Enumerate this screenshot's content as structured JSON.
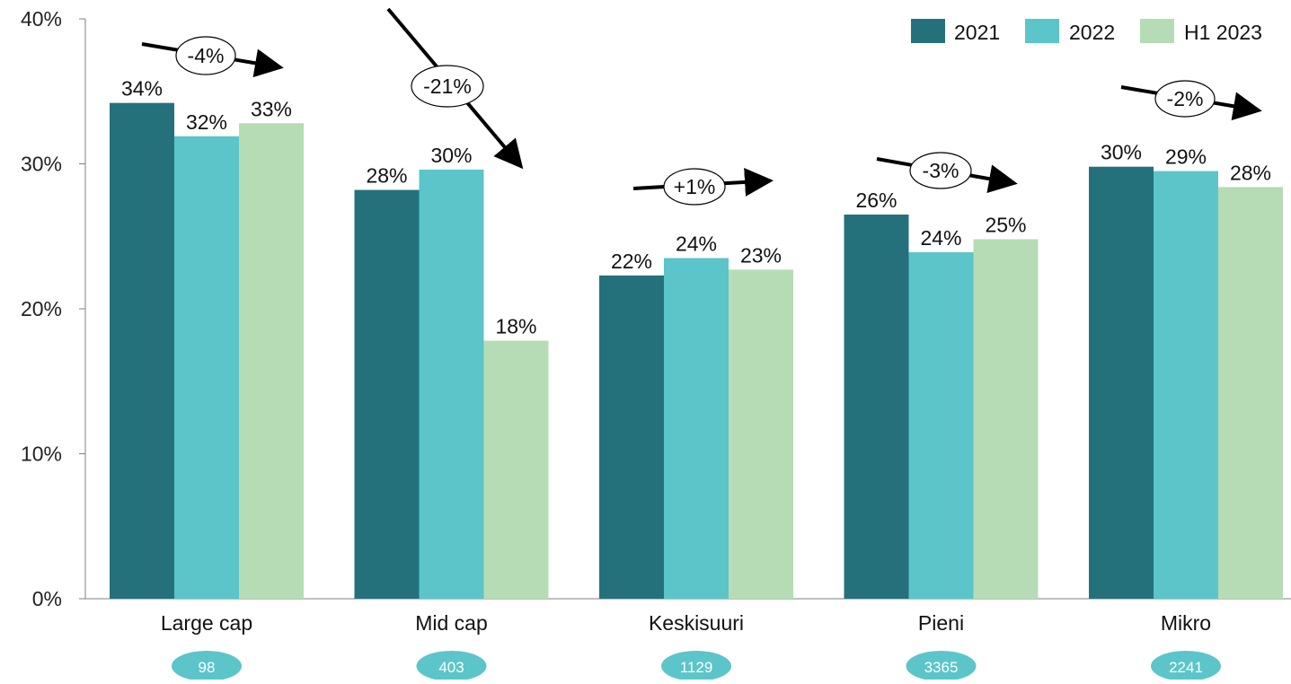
{
  "chart_data": {
    "type": "bar",
    "categories": [
      "Large cap",
      "Mid cap",
      "Keskisuuri",
      "Pieni",
      "Mikro"
    ],
    "series": [
      {
        "name": "2021",
        "color": "#24717c",
        "values": [
          34.2,
          28.2,
          22.3,
          26.5,
          29.8
        ],
        "labels": [
          "34%",
          "28%",
          "22%",
          "26%",
          "30%"
        ]
      },
      {
        "name": "2022",
        "color": "#5bc5c9",
        "values": [
          31.9,
          29.6,
          23.5,
          23.9,
          29.5
        ],
        "labels": [
          "32%",
          "30%",
          "24%",
          "24%",
          "29%"
        ]
      },
      {
        "name": "H1 2023",
        "color": "#b6dcb6",
        "values": [
          32.8,
          17.8,
          22.7,
          24.8,
          28.4
        ],
        "labels": [
          "33%",
          "18%",
          "23%",
          "25%",
          "28%"
        ]
      }
    ],
    "ylim": [
      0,
      40
    ],
    "y_ticks": [
      "0%",
      "10%",
      "20%",
      "30%",
      "40%"
    ],
    "y_tick_values": [
      0,
      10,
      20,
      30,
      40
    ],
    "legend_placement": "top-right",
    "grid": false,
    "changes": [
      "-4%",
      "-21%",
      "+1%",
      "-3%",
      "-2%"
    ],
    "change_directions": [
      "down",
      "down",
      "up",
      "down",
      "down"
    ],
    "counts": [
      "98",
      "403",
      "1129",
      "3365",
      "2241"
    ],
    "count_badge_color": "#5bc5c9"
  }
}
